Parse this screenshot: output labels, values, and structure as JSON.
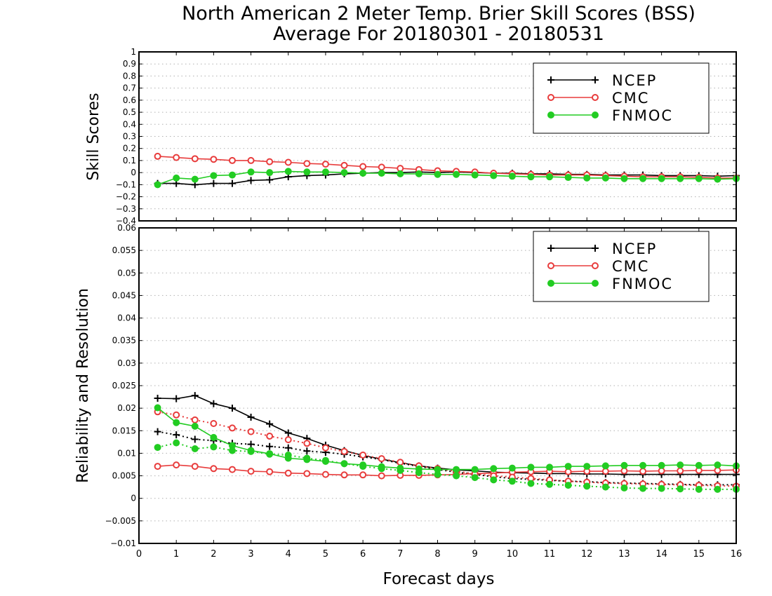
{
  "title_line1": "North American 2 Meter Temp. Brier Skill Scores (BSS)",
  "title_line2": "Average For 20180301 - 20180531",
  "xlabel": "Forecast days",
  "colors": {
    "NCEP": "#000000",
    "CMC": "#e83c3c",
    "FNMOC": "#22cc22"
  },
  "chart_data": [
    {
      "type": "line",
      "ylabel": "Skill Scores",
      "xlim": [
        0,
        16
      ],
      "ylim": [
        -0.4,
        1
      ],
      "grid": true,
      "legend": "top-right",
      "xticks": [
        "0",
        "1",
        "2",
        "3",
        "4",
        "5",
        "6",
        "7",
        "8",
        "9",
        "10",
        "11",
        "12",
        "13",
        "14",
        "15",
        "16"
      ],
      "yticks": [
        "−0.4",
        "−0.3",
        "−0.2",
        "−0.1",
        "0",
        "0.1",
        "0.2",
        "0.3",
        "0.4",
        "0.5",
        "0.6",
        "0.7",
        "0.8",
        "0.9",
        "1"
      ],
      "x": [
        0.5,
        1,
        1.5,
        2,
        2.5,
        3,
        3.5,
        4,
        4.5,
        5,
        5.5,
        6,
        6.5,
        7,
        7.5,
        8,
        8.5,
        9,
        9.5,
        10,
        10.5,
        11,
        11.5,
        12,
        12.5,
        13,
        13.5,
        14,
        14.5,
        15,
        15.5,
        16
      ],
      "series": [
        {
          "name": "NCEP",
          "style": "solid",
          "marker": "plus",
          "values": [
            -0.09,
            -0.09,
            -0.1,
            -0.09,
            -0.09,
            -0.065,
            -0.06,
            -0.035,
            -0.025,
            -0.02,
            -0.01,
            -0.005,
            0.0,
            0.0,
            0.005,
            0.0,
            0.005,
            0.0,
            -0.005,
            -0.005,
            -0.01,
            -0.01,
            -0.015,
            -0.015,
            -0.02,
            -0.02,
            -0.02,
            -0.025,
            -0.025,
            -0.025,
            -0.03,
            -0.025
          ]
        },
        {
          "name": "CMC",
          "style": "solid",
          "marker": "open-circle",
          "values": [
            0.135,
            0.125,
            0.115,
            0.11,
            0.1,
            0.1,
            0.09,
            0.085,
            0.075,
            0.07,
            0.06,
            0.05,
            0.045,
            0.035,
            0.025,
            0.015,
            0.01,
            0.005,
            -0.005,
            -0.01,
            -0.015,
            -0.02,
            -0.02,
            -0.02,
            -0.025,
            -0.03,
            -0.035,
            -0.035,
            -0.035,
            -0.04,
            -0.045,
            -0.045
          ]
        },
        {
          "name": "FNMOC",
          "style": "solid",
          "marker": "filled-circle",
          "values": [
            -0.1,
            -0.045,
            -0.055,
            -0.025,
            -0.02,
            0.005,
            0.0,
            0.01,
            0.005,
            0.005,
            0.0,
            -0.005,
            -0.005,
            -0.01,
            -0.01,
            -0.015,
            -0.015,
            -0.02,
            -0.025,
            -0.03,
            -0.035,
            -0.035,
            -0.04,
            -0.045,
            -0.045,
            -0.05,
            -0.05,
            -0.05,
            -0.05,
            -0.05,
            -0.055,
            -0.05
          ]
        }
      ]
    },
    {
      "type": "line",
      "ylabel": "Reliability and Resolution",
      "xlim": [
        0,
        16
      ],
      "ylim": [
        -0.01,
        0.06
      ],
      "grid": true,
      "legend": "top-right",
      "xticks": [
        "0",
        "1",
        "2",
        "3",
        "4",
        "5",
        "6",
        "7",
        "8",
        "9",
        "10",
        "11",
        "12",
        "13",
        "14",
        "15",
        "16"
      ],
      "yticks": [
        "−0.01",
        "−0.005",
        "0",
        "0.005",
        "0.01",
        "0.015",
        "0.02",
        "0.025",
        "0.03",
        "0.035",
        "0.04",
        "0.045",
        "0.05",
        "0.055",
        "0.06"
      ],
      "x": [
        0.5,
        1,
        1.5,
        2,
        2.5,
        3,
        3.5,
        4,
        4.5,
        5,
        5.5,
        6,
        6.5,
        7,
        7.5,
        8,
        8.5,
        9,
        9.5,
        10,
        10.5,
        11,
        11.5,
        12,
        12.5,
        13,
        13.5,
        14,
        14.5,
        15,
        15.5,
        16
      ],
      "series": [
        {
          "name": "NCEP",
          "style": "solid",
          "marker": "plus",
          "values": [
            0.0222,
            0.0221,
            0.0228,
            0.021,
            0.02,
            0.018,
            0.0165,
            0.0145,
            0.0133,
            0.0118,
            0.0106,
            0.0095,
            0.0087,
            0.0079,
            0.0072,
            0.0067,
            0.0063,
            0.0061,
            0.0058,
            0.0057,
            0.0056,
            0.0055,
            0.0055,
            0.0054,
            0.0054,
            0.0053,
            0.0053,
            0.0053,
            0.0053,
            0.0053,
            0.0053,
            0.0053
          ]
        },
        {
          "name": "NCEP",
          "style": "dotted",
          "marker": "plus",
          "values": [
            0.0148,
            0.0141,
            0.0131,
            0.0128,
            0.0122,
            0.012,
            0.0115,
            0.0112,
            0.0105,
            0.0102,
            0.0098,
            0.0092,
            0.0086,
            0.0078,
            0.0071,
            0.0064,
            0.0058,
            0.0053,
            0.0048,
            0.0044,
            0.0042,
            0.004,
            0.0038,
            0.0037,
            0.0035,
            0.0034,
            0.0033,
            0.0032,
            0.0031,
            0.003,
            0.003,
            0.003
          ]
        },
        {
          "name": "CMC",
          "style": "solid",
          "marker": "open-circle",
          "values": [
            0.0071,
            0.0074,
            0.0071,
            0.0066,
            0.0064,
            0.006,
            0.0059,
            0.0056,
            0.0055,
            0.0053,
            0.0052,
            0.0052,
            0.005,
            0.0051,
            0.0051,
            0.0052,
            0.0053,
            0.0055,
            0.0056,
            0.0058,
            0.0059,
            0.006,
            0.0059,
            0.006,
            0.006,
            0.0061,
            0.006,
            0.0061,
            0.0061,
            0.0062,
            0.0062,
            0.0063
          ]
        },
        {
          "name": "CMC",
          "style": "dotted",
          "marker": "open-circle",
          "values": [
            0.0192,
            0.0185,
            0.0174,
            0.0166,
            0.0156,
            0.0148,
            0.0138,
            0.013,
            0.0122,
            0.0112,
            0.0104,
            0.0096,
            0.0088,
            0.008,
            0.0072,
            0.0066,
            0.006,
            0.0054,
            0.005,
            0.0047,
            0.0044,
            0.0041,
            0.0038,
            0.0036,
            0.0034,
            0.0033,
            0.0032,
            0.0031,
            0.003,
            0.0029,
            0.0028,
            0.0027
          ]
        },
        {
          "name": "FNMOC",
          "style": "solid",
          "marker": "filled-circle",
          "values": [
            0.0201,
            0.0168,
            0.016,
            0.0135,
            0.0117,
            0.0106,
            0.0099,
            0.0089,
            0.0086,
            0.0082,
            0.0077,
            0.0074,
            0.007,
            0.0067,
            0.0065,
            0.0064,
            0.0064,
            0.0064,
            0.0066,
            0.0067,
            0.0069,
            0.0069,
            0.0071,
            0.0071,
            0.0072,
            0.0073,
            0.0073,
            0.0073,
            0.0074,
            0.0073,
            0.0074,
            0.0072
          ]
        },
        {
          "name": "FNMOC",
          "style": "dotted",
          "marker": "filled-circle",
          "values": [
            0.0113,
            0.0123,
            0.011,
            0.0114,
            0.0106,
            0.0104,
            0.0098,
            0.0096,
            0.0089,
            0.0084,
            0.0077,
            0.0071,
            0.0066,
            0.0062,
            0.0057,
            0.0053,
            0.005,
            0.0046,
            0.0041,
            0.0038,
            0.0033,
            0.0031,
            0.0029,
            0.0027,
            0.0025,
            0.0023,
            0.0022,
            0.0022,
            0.0021,
            0.002,
            0.002,
            0.002
          ]
        }
      ]
    }
  ]
}
